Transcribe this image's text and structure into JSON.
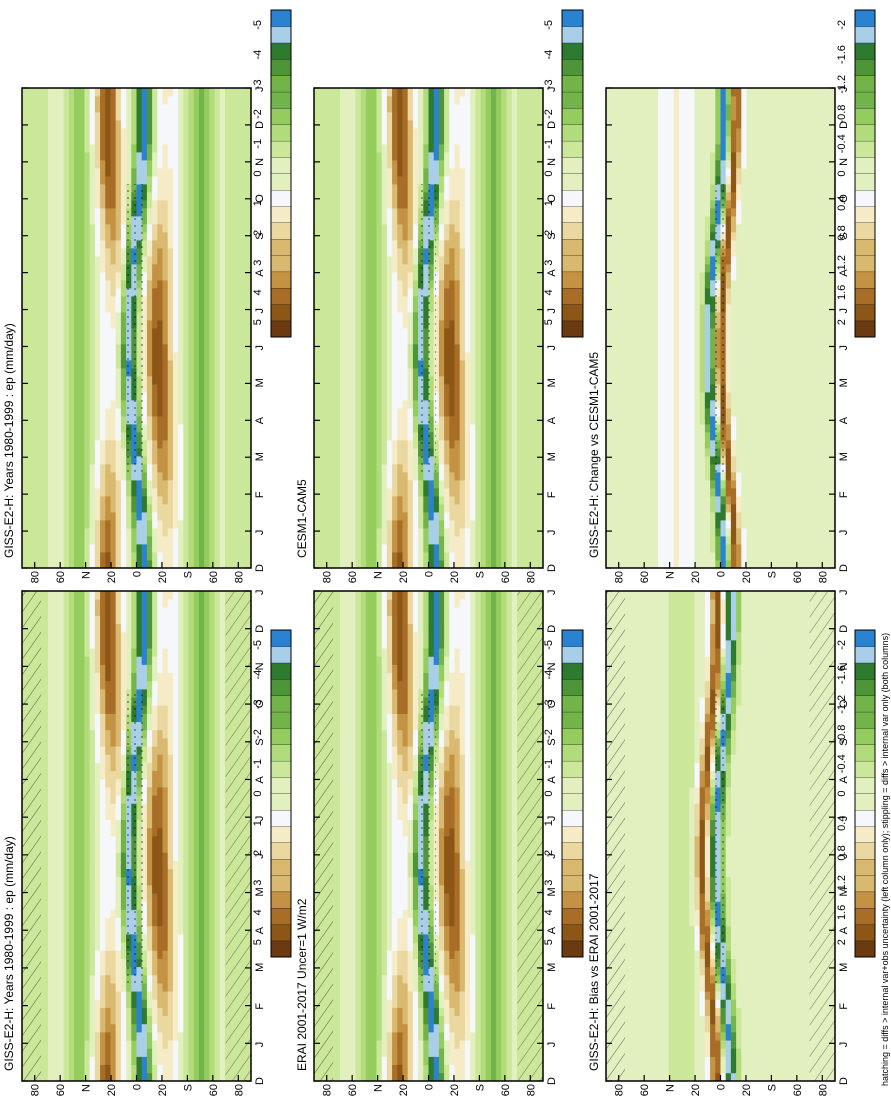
{
  "footnote": "hatching = diffs > internal var+obs uncertainty (left column only); stippling = diffs > internal var only (both columns)",
  "chart_data": [
    {
      "type": "heatmap",
      "title": "GISS-E2-H: Years 1980-1999 : ep (mm/day)",
      "months": [
        "D",
        "J",
        "F",
        "M",
        "A",
        "M",
        "J",
        "J",
        "A",
        "S",
        "O",
        "N",
        "D",
        "J"
      ],
      "lat_labels": [
        "80",
        "60",
        "N",
        "20",
        "0",
        "20",
        "S",
        "60",
        "80"
      ],
      "colorbar_labels": [
        "5",
        "4",
        "3",
        "2",
        "1",
        "0",
        "-1",
        "-2",
        "-3",
        "-4",
        "-5"
      ],
      "hatching": true
    },
    {
      "type": "heatmap",
      "title": "GISS-E2-H: Years 1980-1999 : ep (mm/day)",
      "months": [
        "D",
        "J",
        "F",
        "M",
        "A",
        "M",
        "J",
        "J",
        "A",
        "S",
        "O",
        "N",
        "D",
        "J"
      ],
      "lat_labels": [
        "80",
        "60",
        "N",
        "20",
        "0",
        "20",
        "S",
        "60",
        "80"
      ],
      "colorbar_labels": [
        "5",
        "4",
        "3",
        "2",
        "1",
        "0",
        "-1",
        "-2",
        "-3",
        "-4",
        "-5"
      ],
      "hatching": false
    },
    {
      "type": "heatmap",
      "title": "ERAI 2001-2017 Uncer=1 W/m2",
      "months": [
        "D",
        "J",
        "F",
        "M",
        "A",
        "M",
        "J",
        "J",
        "A",
        "S",
        "O",
        "N",
        "D",
        "J"
      ],
      "lat_labels": [
        "80",
        "60",
        "N",
        "20",
        "0",
        "20",
        "S",
        "60",
        "80"
      ],
      "colorbar_labels": [
        "5",
        "4",
        "3",
        "2",
        "1",
        "0",
        "-1",
        "-2",
        "-3",
        "-4",
        "-5"
      ],
      "hatching": true
    },
    {
      "type": "heatmap",
      "title": "CESM1-CAM5",
      "months": [
        "D",
        "J",
        "F",
        "M",
        "A",
        "M",
        "J",
        "J",
        "A",
        "S",
        "O",
        "N",
        "D",
        "J"
      ],
      "lat_labels": [
        "80",
        "60",
        "N",
        "20",
        "0",
        "20",
        "S",
        "60",
        "80"
      ],
      "colorbar_labels": [
        "5",
        "4",
        "3",
        "2",
        "1",
        "0",
        "-1",
        "-2",
        "-3",
        "-4",
        "-5"
      ],
      "hatching": false
    },
    {
      "type": "heatmap",
      "title": "GISS-E2-H: Bias vs ERAI 2001-2017",
      "months": [
        "D",
        "J",
        "F",
        "M",
        "A",
        "M",
        "J",
        "J",
        "A",
        "S",
        "O",
        "N",
        "D",
        "J"
      ],
      "lat_labels": [
        "80",
        "60",
        "N",
        "20",
        "0",
        "20",
        "S",
        "60",
        "80"
      ],
      "colorbar_labels": [
        "2",
        "1.6",
        "1.2",
        "0.8",
        "0.4",
        "0",
        "-0.4",
        "-0.8",
        "-1.2",
        "-1.6",
        "-2"
      ],
      "hatching": true
    },
    {
      "type": "heatmap",
      "title": "GISS-E2-H: Change vs CESM1-CAM5",
      "months": [
        "D",
        "J",
        "F",
        "M",
        "A",
        "M",
        "J",
        "J",
        "A",
        "S",
        "O",
        "N",
        "D",
        "J"
      ],
      "lat_labels": [
        "80",
        "60",
        "N",
        "20",
        "0",
        "20",
        "S",
        "60",
        "80"
      ],
      "colorbar_labels": [
        "2",
        "1.6",
        "1.2",
        "0.8",
        "0.4",
        "0",
        "-0.4",
        "-0.8",
        "-1.2",
        "-1.6",
        "-2"
      ],
      "hatching": false
    }
  ],
  "palette": {
    "wet": [
      "#6b3a10",
      "#8c5616",
      "#a86d26",
      "#c39243",
      "#d9b870",
      "#ebd7a0",
      "#f5ecc7"
    ],
    "zero": "#f6f7fb",
    "dry": [
      "#e2f0c0",
      "#cbe79a",
      "#b2dc7c",
      "#94cc5e",
      "#72b34a",
      "#4e9438",
      "#2e7a2e",
      "#a9cfe8",
      "#2b82d0"
    ]
  }
}
